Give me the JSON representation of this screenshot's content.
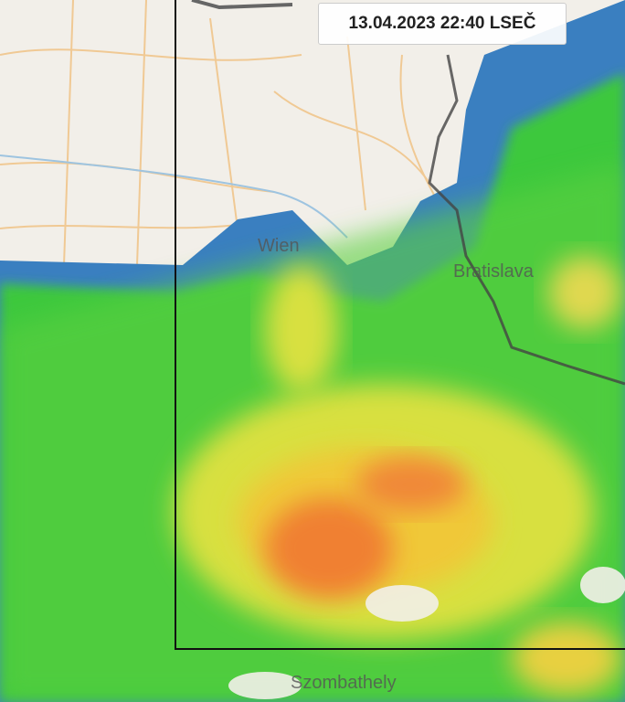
{
  "timestamp": "13.04.2023 22:40 LSEČ",
  "cities": {
    "wien": "Wien",
    "bratislava": "Bratislava",
    "szombathely": "Szombathely"
  },
  "colors": {
    "land": "#f2efe9",
    "rain_light": "#3a7fc0",
    "rain_moderate": "#3cc83c",
    "rain_heavy": "#f0d840",
    "rain_intense": "#f07030"
  }
}
